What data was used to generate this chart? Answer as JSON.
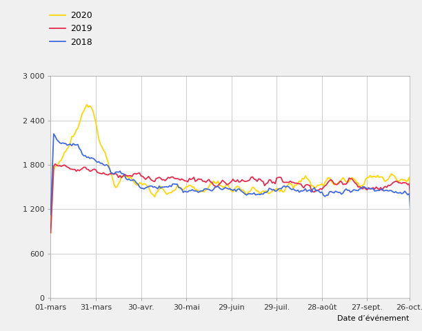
{
  "xlabel": "Date d’événement",
  "ylim": [
    0,
    3000
  ],
  "yticks": [
    0,
    600,
    1200,
    1800,
    2400,
    3000
  ],
  "ytick_labels": [
    "0",
    "600",
    "1 200",
    "1 800",
    "2 400",
    "3 000"
  ],
  "xtick_labels": [
    "01-mars",
    "31-mars",
    "30-avr.",
    "30-mai",
    "29-juin",
    "29-juil.",
    "28-août",
    "27-sept.",
    "26-oct."
  ],
  "legend": [
    "2020",
    "2019",
    "2018"
  ],
  "colors": {
    "2020": "#FFD700",
    "2019": "#E8294C",
    "2018": "#4169E1"
  },
  "background_color": "#f0f0f0",
  "plot_background": "#ffffff",
  "grid_color": "#cccccc"
}
